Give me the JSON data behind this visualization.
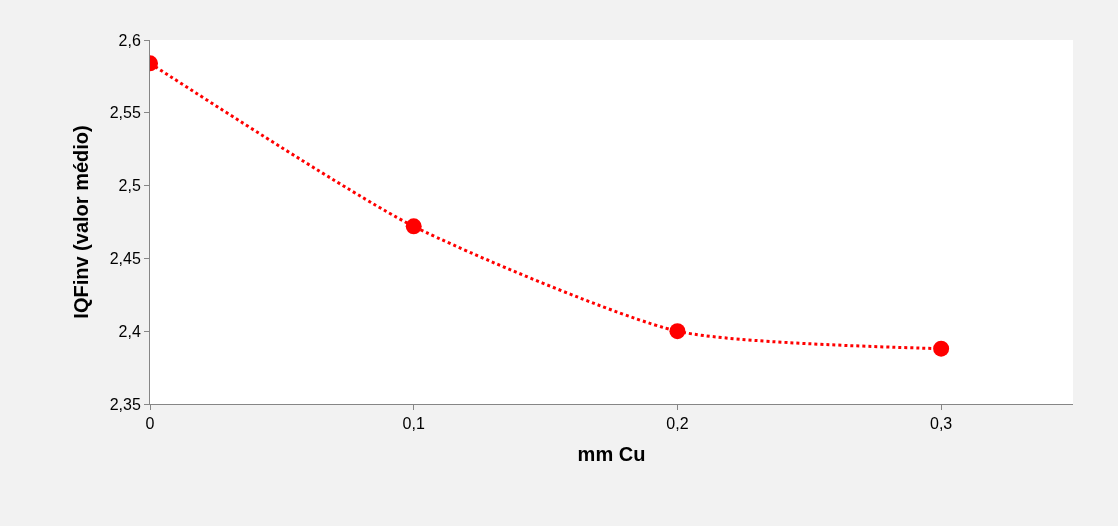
{
  "chart_data": {
    "type": "line",
    "xlabel": "mm Cu",
    "ylabel": "IQFinv (valor médio)",
    "x": [
      0,
      0.1,
      0.2,
      0.3
    ],
    "series": [
      {
        "color": "#ff0000",
        "values": [
          2.584,
          2.472,
          2.4,
          2.388
        ]
      }
    ],
    "xlim": [
      0,
      0.35
    ],
    "xticks": [
      {
        "value": 0,
        "label": "0"
      },
      {
        "value": 0.1,
        "label": "0,1"
      },
      {
        "value": 0.2,
        "label": "0,2"
      },
      {
        "value": 0.3,
        "label": "0,3"
      }
    ],
    "ylim": [
      2.35,
      2.6
    ],
    "yticks": [
      {
        "value": 2.35,
        "label": "2,35"
      },
      {
        "value": 2.4,
        "label": "2,4"
      },
      {
        "value": 2.45,
        "label": "2,45"
      },
      {
        "value": 2.5,
        "label": "2,5"
      },
      {
        "value": 2.55,
        "label": "2,55"
      },
      {
        "value": 2.6,
        "label": "2,6"
      }
    ],
    "marker": "circle",
    "line_style": "dotted"
  }
}
